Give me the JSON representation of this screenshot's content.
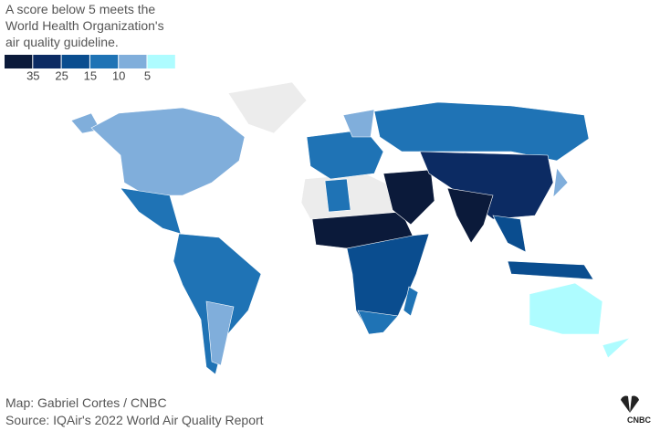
{
  "subtitle": [
    "A score below 5 meets the",
    "World Health Organization's",
    "air quality guideline."
  ],
  "legend": {
    "colors": [
      "#0b1a3a",
      "#0c2b63",
      "#0a4d8f",
      "#1f73b5",
      "#80aedb",
      "#aefcff"
    ],
    "ticks": [
      35,
      25,
      15,
      10,
      5
    ]
  },
  "credit": "Map: Gabriel Cortes / CNBC",
  "source": "Source: IQAir's 2022 World Air Quality Report",
  "logo": "CNBC"
}
